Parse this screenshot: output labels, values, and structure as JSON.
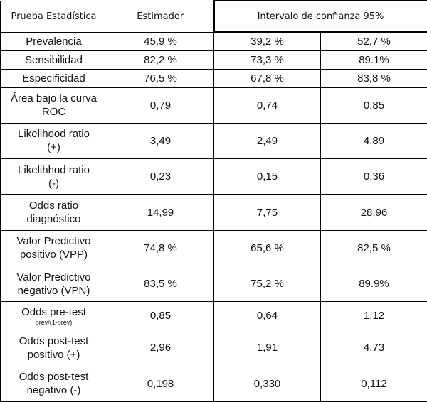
{
  "table": {
    "header": [
      "Prueba Estadística",
      "Estimador",
      "Intervalo de confianza 95%"
    ],
    "rows": [
      {
        "label": [
          "Prevalencia"
        ],
        "values": [
          "45,9 %",
          "39,2 %",
          "52,7 %"
        ]
      },
      {
        "label": [
          "Sensibilidad"
        ],
        "values": [
          "82,2 %",
          "73,3 %",
          "89.1%"
        ]
      },
      {
        "label": [
          "Especificidad"
        ],
        "values": [
          "76,5 %",
          "67,8 %",
          "83,8 %"
        ]
      },
      {
        "label": [
          "Área bajo la curva",
          "ROC"
        ],
        "values": [
          "0,79",
          "0,74",
          "0,85"
        ]
      },
      {
        "label": [
          "Likelihood ratio",
          "(+)"
        ],
        "values": [
          "3,49",
          "2,49",
          "4,89"
        ]
      },
      {
        "label": [
          "Likelihhod ratio",
          "(-)"
        ],
        "values": [
          "0,23",
          "0,15",
          "0,36"
        ]
      },
      {
        "label": [
          "Odds ratio",
          "diagnóstico"
        ],
        "values": [
          "14,99",
          "7,75",
          "28,96"
        ]
      },
      {
        "label": [
          "Valor Predictivo",
          "positivo (VPP)"
        ],
        "values": [
          "74,8 %",
          "65,6 %",
          "82,5 %"
        ]
      },
      {
        "label": [
          "Valor Predictivo",
          "negativo (VPN)"
        ],
        "values": [
          "83,5 %",
          "75,2 %",
          "89.9%"
        ]
      },
      {
        "label": [
          "Odds pre-test"
        ],
        "note": "prev/(1-prev)",
        "values": [
          "0,85",
          "0,64",
          "1.12"
        ]
      },
      {
        "label": [
          "Odds post-test",
          "positivo (+)"
        ],
        "values": [
          "2,96",
          "1,91",
          "4,73"
        ]
      },
      {
        "label": [
          "Odds post-test",
          "negativo (-)"
        ],
        "values": [
          "0,198",
          "0,330",
          "0,112"
        ]
      }
    ]
  }
}
